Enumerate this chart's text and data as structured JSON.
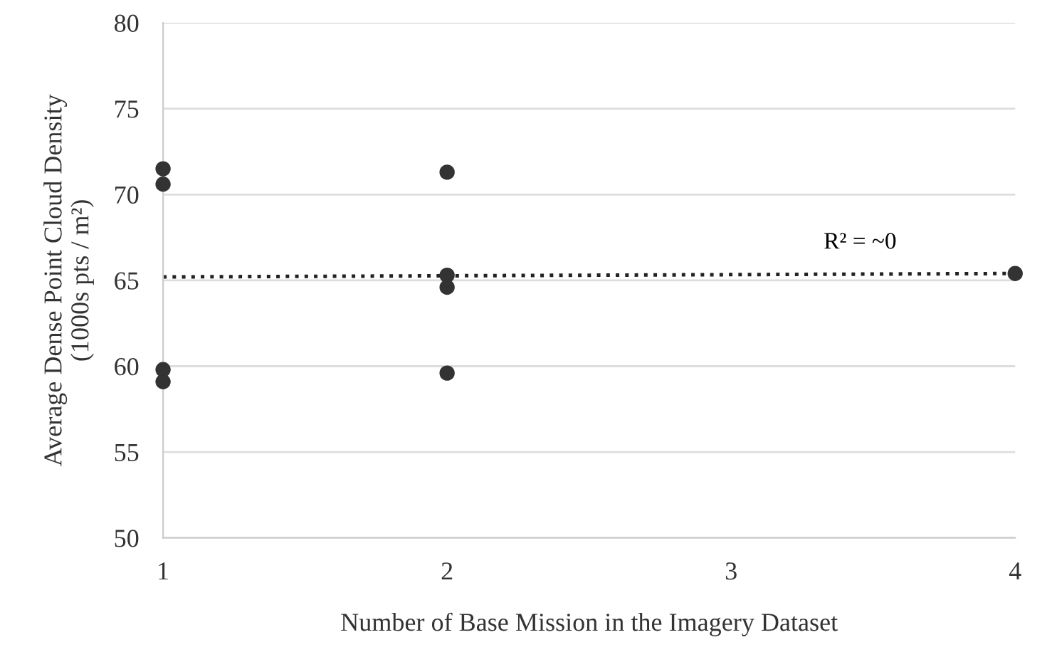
{
  "chart_data": {
    "type": "scatter",
    "xlabel": "Number of Base Mission in the Imagery Dataset",
    "ylabel": "Average Dense Point Cloud Density\n(1000s pts / m²)",
    "series": [
      {
        "color": "#333333",
        "marker": "circle",
        "x": [
          1,
          1,
          1,
          1,
          2,
          2,
          2,
          2,
          4
        ],
        "values": [
          71.5,
          70.6,
          59.8,
          59.1,
          71.3,
          65.3,
          64.6,
          59.6,
          65.4
        ]
      },
      {
        "type": "line",
        "color": "#222222",
        "line_style": "dotted",
        "marker": "none",
        "x": [
          1,
          4
        ],
        "values": [
          65.2,
          65.4
        ]
      }
    ],
    "annotations": [
      "R² = ~0"
    ],
    "xlim": [
      1,
      4
    ],
    "xticks": [
      1,
      2,
      3,
      4
    ],
    "ylim": [
      50,
      80
    ],
    "yticks": [
      50,
      55,
      60,
      65,
      70,
      75,
      80
    ],
    "grid": "y",
    "legend": false
  }
}
